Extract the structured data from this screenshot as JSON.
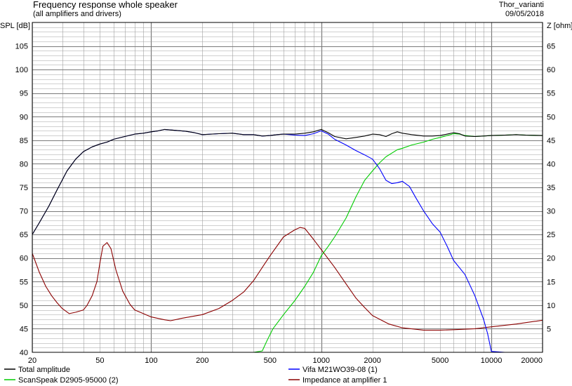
{
  "chart_data": {
    "type": "line",
    "title": "Frequency response whole speaker",
    "subtitle": "(all amplifiers and drivers)",
    "project": "Thor_varianti",
    "date": "09/05/2018",
    "ylabel": "SPL [dB]",
    "y2label": "Z [ohm]",
    "x_scale": "log",
    "xlim": [
      20,
      20000
    ],
    "ylim": [
      40,
      110
    ],
    "y2lim": [
      0,
      70
    ],
    "grid": true,
    "legend_position": "bottom",
    "x_ticks": [
      20,
      50,
      100,
      200,
      500,
      1000,
      2000,
      5000,
      10000,
      20000
    ],
    "x_tick_labels": [
      "20",
      "50",
      "100",
      "200",
      "500",
      "1000",
      "2000",
      "5000",
      "10000",
      "20000"
    ],
    "y_ticks": [
      40,
      45,
      50,
      55,
      60,
      65,
      70,
      75,
      80,
      85,
      90,
      95,
      100,
      105
    ],
    "y2_ticks": [
      5,
      10,
      15,
      20,
      25,
      30,
      35,
      40,
      45,
      50,
      55,
      60,
      65
    ],
    "colors": {
      "grid": "#a0a0a0",
      "grid_major": "#7a7a7a"
    },
    "series": [
      {
        "name": "Total amplitude",
        "color": "#000000",
        "axis": "left",
        "points": [
          [
            20,
            65
          ],
          [
            22,
            67.5
          ],
          [
            25,
            71
          ],
          [
            28,
            74.5
          ],
          [
            32,
            78.5
          ],
          [
            36,
            81
          ],
          [
            40,
            82.6
          ],
          [
            45,
            83.6
          ],
          [
            50,
            84.2
          ],
          [
            55,
            84.6
          ],
          [
            60,
            85.2
          ],
          [
            70,
            85.8
          ],
          [
            80,
            86.3
          ],
          [
            90,
            86.5
          ],
          [
            100,
            86.8
          ],
          [
            110,
            87
          ],
          [
            120,
            87.3
          ],
          [
            140,
            87.1
          ],
          [
            160,
            86.9
          ],
          [
            180,
            86.6
          ],
          [
            200,
            86.2
          ],
          [
            250,
            86.4
          ],
          [
            300,
            86.5
          ],
          [
            350,
            86.2
          ],
          [
            400,
            86.2
          ],
          [
            450,
            85.9
          ],
          [
            500,
            86
          ],
          [
            550,
            86.2
          ],
          [
            600,
            86.3
          ],
          [
            700,
            86.3
          ],
          [
            800,
            86.5
          ],
          [
            900,
            86.8
          ],
          [
            1000,
            87.3
          ],
          [
            1100,
            86.6
          ],
          [
            1200,
            85.8
          ],
          [
            1400,
            85.3
          ],
          [
            1600,
            85.6
          ],
          [
            1800,
            85.9
          ],
          [
            2000,
            86.3
          ],
          [
            2200,
            86.2
          ],
          [
            2400,
            85.8
          ],
          [
            2600,
            86.4
          ],
          [
            2800,
            86.8
          ],
          [
            3000,
            86.5
          ],
          [
            3400,
            86.2
          ],
          [
            4000,
            85.9
          ],
          [
            4500,
            85.9
          ],
          [
            5000,
            86
          ],
          [
            5500,
            86.3
          ],
          [
            6000,
            86.6
          ],
          [
            6500,
            86.4
          ],
          [
            7000,
            85.9
          ],
          [
            8000,
            85.8
          ],
          [
            9000,
            85.9
          ],
          [
            10000,
            86
          ],
          [
            12000,
            86.1
          ],
          [
            14000,
            86.2
          ],
          [
            16000,
            86.1
          ],
          [
            20000,
            86
          ]
        ]
      },
      {
        "name": "Vifa M21WO39-08 (1)",
        "color": "#0000ff",
        "axis": "left",
        "points": [
          [
            20,
            65
          ],
          [
            22,
            67.5
          ],
          [
            25,
            71
          ],
          [
            28,
            74.5
          ],
          [
            32,
            78.5
          ],
          [
            36,
            81
          ],
          [
            40,
            82.6
          ],
          [
            45,
            83.6
          ],
          [
            50,
            84.2
          ],
          [
            55,
            84.6
          ],
          [
            60,
            85.2
          ],
          [
            70,
            85.8
          ],
          [
            80,
            86.3
          ],
          [
            90,
            86.5
          ],
          [
            100,
            86.8
          ],
          [
            110,
            87
          ],
          [
            120,
            87.3
          ],
          [
            140,
            87.1
          ],
          [
            160,
            86.9
          ],
          [
            180,
            86.6
          ],
          [
            200,
            86.2
          ],
          [
            250,
            86.4
          ],
          [
            300,
            86.5
          ],
          [
            350,
            86.2
          ],
          [
            400,
            86.2
          ],
          [
            450,
            85.9
          ],
          [
            500,
            86
          ],
          [
            550,
            86.2
          ],
          [
            600,
            86.3
          ],
          [
            700,
            86.1
          ],
          [
            800,
            86
          ],
          [
            900,
            86.4
          ],
          [
            1000,
            87
          ],
          [
            1100,
            86.3
          ],
          [
            1200,
            85.2
          ],
          [
            1400,
            84
          ],
          [
            1600,
            82.8
          ],
          [
            1800,
            81.9
          ],
          [
            2000,
            81
          ],
          [
            2200,
            79
          ],
          [
            2400,
            76.5
          ],
          [
            2600,
            75.8
          ],
          [
            2800,
            76
          ],
          [
            3000,
            76.3
          ],
          [
            3300,
            75.2
          ],
          [
            3600,
            72.8
          ],
          [
            4000,
            70
          ],
          [
            4500,
            67.3
          ],
          [
            5000,
            65.5
          ],
          [
            5500,
            62.5
          ],
          [
            6000,
            59.5
          ],
          [
            7000,
            56.5
          ],
          [
            8000,
            52
          ],
          [
            9000,
            47
          ],
          [
            9500,
            44
          ],
          [
            10000,
            40.2
          ],
          [
            12000,
            40
          ],
          [
            20000,
            40
          ]
        ]
      },
      {
        "name": "ScanSpeak D2905-95000 (2)",
        "color": "#00cc00",
        "axis": "left",
        "points": [
          [
            20,
            40
          ],
          [
            400,
            40
          ],
          [
            450,
            40.3
          ],
          [
            480,
            42.5
          ],
          [
            520,
            45
          ],
          [
            600,
            48
          ],
          [
            700,
            51
          ],
          [
            800,
            54
          ],
          [
            900,
            57
          ],
          [
            1000,
            60.5
          ],
          [
            1100,
            62.5
          ],
          [
            1200,
            64.5
          ],
          [
            1400,
            68.5
          ],
          [
            1600,
            73
          ],
          [
            1800,
            76.5
          ],
          [
            2000,
            78.5
          ],
          [
            2200,
            80.2
          ],
          [
            2400,
            81.5
          ],
          [
            2800,
            83
          ],
          [
            3000,
            83.3
          ],
          [
            3400,
            84
          ],
          [
            4000,
            84.6
          ],
          [
            4500,
            85.2
          ],
          [
            5000,
            85.6
          ],
          [
            5500,
            86
          ],
          [
            6000,
            86.4
          ],
          [
            6500,
            86.3
          ],
          [
            7000,
            86
          ],
          [
            8000,
            85.8
          ],
          [
            9000,
            85.9
          ],
          [
            10000,
            86
          ],
          [
            12000,
            86.1
          ],
          [
            14000,
            86.2
          ],
          [
            16000,
            86.1
          ],
          [
            20000,
            86
          ]
        ]
      },
      {
        "name": "Impedance at amplifier 1",
        "color": "#8b0000",
        "axis": "right",
        "points": [
          [
            20,
            21
          ],
          [
            22,
            17
          ],
          [
            24,
            14
          ],
          [
            26,
            12
          ],
          [
            28,
            10.5
          ],
          [
            30,
            9.3
          ],
          [
            33,
            8.2
          ],
          [
            36,
            8.5
          ],
          [
            40,
            9
          ],
          [
            42,
            10
          ],
          [
            45,
            12
          ],
          [
            48,
            15
          ],
          [
            50,
            19
          ],
          [
            52,
            22.5
          ],
          [
            55,
            23.3
          ],
          [
            58,
            22
          ],
          [
            62,
            17.5
          ],
          [
            68,
            13
          ],
          [
            75,
            10.2
          ],
          [
            80,
            9
          ],
          [
            90,
            8.2
          ],
          [
            100,
            7.5
          ],
          [
            120,
            6.9
          ],
          [
            130,
            6.7
          ],
          [
            150,
            7.2
          ],
          [
            200,
            8
          ],
          [
            250,
            9.3
          ],
          [
            300,
            11
          ],
          [
            350,
            12.8
          ],
          [
            400,
            15.2
          ],
          [
            450,
            18
          ],
          [
            500,
            20.5
          ],
          [
            600,
            24.5
          ],
          [
            700,
            26
          ],
          [
            750,
            26.5
          ],
          [
            800,
            26.3
          ],
          [
            900,
            24
          ],
          [
            1000,
            21.8
          ],
          [
            1200,
            18
          ],
          [
            1400,
            14.5
          ],
          [
            1600,
            11.5
          ],
          [
            1800,
            9.5
          ],
          [
            2000,
            7.8
          ],
          [
            2500,
            6
          ],
          [
            3000,
            5.2
          ],
          [
            4000,
            4.7
          ],
          [
            5000,
            4.7
          ],
          [
            6000,
            4.8
          ],
          [
            8000,
            5
          ],
          [
            10000,
            5.4
          ],
          [
            14000,
            6
          ],
          [
            20000,
            6.8
          ]
        ]
      }
    ]
  }
}
